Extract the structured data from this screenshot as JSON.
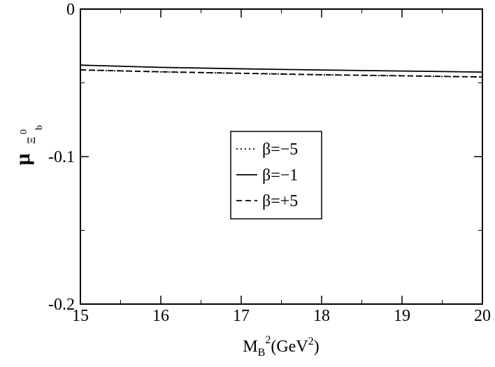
{
  "chart_data": {
    "type": "line",
    "x_label": {
      "main": "M",
      "sub": "B",
      "sup": "2",
      "unit": "(GeV",
      "unit_sup": "2",
      "close": ")"
    },
    "y_label": {
      "main": "μ",
      "sub": "Ξ",
      "sub_sup": "0",
      "sub_sub": "b"
    },
    "x": [
      15,
      16,
      17,
      18,
      19,
      20
    ],
    "series": [
      {
        "name": "β=−5",
        "color": "#000000",
        "dash": "dotted",
        "values": [
          -0.0413,
          -0.0426,
          -0.0436,
          -0.0446,
          -0.0453,
          -0.0461
        ]
      },
      {
        "name": "β=−1",
        "color": "#000000",
        "dash": "solid",
        "values": [
          -0.038,
          -0.0395,
          -0.0405,
          -0.0413,
          -0.042,
          -0.0427
        ]
      },
      {
        "name": "β=+5",
        "color": "#000000",
        "dash": "dashed",
        "values": [
          -0.0412,
          -0.0425,
          -0.0435,
          -0.0445,
          -0.0452,
          -0.046
        ]
      }
    ],
    "xlim": [
      15,
      20
    ],
    "xticks": [
      15,
      16,
      17,
      18,
      19,
      20
    ],
    "xminor": [
      15.5,
      16.5,
      17.5,
      18.5,
      19.5
    ],
    "ylim": [
      -0.2,
      0
    ],
    "yticks": [
      -0.2,
      -0.1,
      0
    ],
    "yminor": [
      -0.15,
      -0.05
    ],
    "grid": false
  }
}
